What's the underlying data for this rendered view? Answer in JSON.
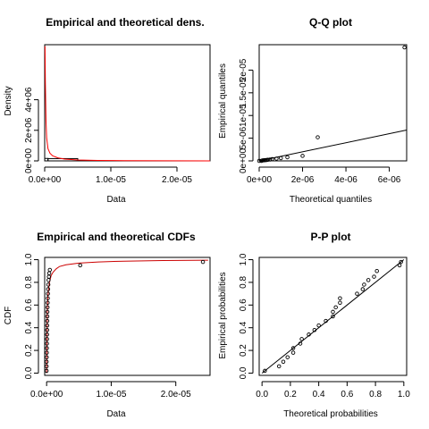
{
  "chart_data": [
    {
      "type": "histogram+density",
      "title": "Empirical and theoretical dens.",
      "xlabel": "Data",
      "ylabel": "Density",
      "xlim": [
        0,
        2.5e-05
      ],
      "ylim": [
        0,
        7600000
      ],
      "x_ticks": [
        {
          "v": 0,
          "label": "0.0e+00"
        },
        {
          "v": 1e-05,
          "label": "1.0e-05"
        },
        {
          "v": 2e-05,
          "label": "2.0e-05"
        }
      ],
      "y_ticks": [
        {
          "v": 0,
          "label": "0e+00"
        },
        {
          "v": 2000000,
          "label": "2e+06"
        },
        {
          "v": 4000000,
          "label": "4e+06"
        }
      ],
      "histogram": [
        {
          "x0": 0,
          "x1": 5e-07,
          "density": 160000
        },
        {
          "x0": 5e-07,
          "x1": 5e-06,
          "density": 150000
        }
      ],
      "density_curve": {
        "color": "#ff0000",
        "x": [
          5e-08,
          1e-07,
          2e-07,
          3e-07,
          5e-07,
          8e-07,
          1.2e-06,
          2e-06,
          3e-06,
          5e-06,
          8e-06,
          1.2e-05,
          1.8e-05,
          2.5e-05
        ],
        "y": [
          7500000,
          5200000,
          2600000,
          1500000,
          800000,
          500000,
          330000,
          200000,
          120000,
          60000,
          30000,
          15000,
          6000,
          2000
        ]
      }
    },
    {
      "type": "scatter",
      "title": "Q-Q plot",
      "xlabel": "Theoretical quantiles",
      "ylabel": "Empirical quantiles",
      "xlim": [
        0,
        6.8e-06
      ],
      "ylim": [
        0,
        2.56e-05
      ],
      "x_ticks": [
        {
          "v": 0,
          "label": "0e+00"
        },
        {
          "v": 2e-06,
          "label": "2e-06"
        },
        {
          "v": 4e-06,
          "label": "4e-06"
        },
        {
          "v": 6e-06,
          "label": "6e-06"
        }
      ],
      "y_ticks": [
        {
          "v": 0,
          "label": "0e+00"
        },
        {
          "v": 5e-06,
          "label": "5e-06"
        },
        {
          "v": 1e-05,
          "label": "1e-05"
        },
        {
          "v": 1.5e-05,
          "label": "1.5e-05"
        },
        {
          "v": 2e-05,
          "label": "2e-05"
        }
      ],
      "points": [
        {
          "x": 0.0,
          "y": 0.0
        },
        {
          "x": 1e-07,
          "y": 0.0
        },
        {
          "x": 1.5e-07,
          "y": 1e-07
        },
        {
          "x": 2e-07,
          "y": 1.2e-07
        },
        {
          "x": 2.5e-07,
          "y": 1.5e-07
        },
        {
          "x": 3e-07,
          "y": 1.8e-07
        },
        {
          "x": 3.5e-07,
          "y": 2e-07
        },
        {
          "x": 4e-07,
          "y": 2.5e-07
        },
        {
          "x": 5e-07,
          "y": 3e-07
        },
        {
          "x": 6e-07,
          "y": 4e-07
        },
        {
          "x": 8e-07,
          "y": 5e-07
        },
        {
          "x": 1e-06,
          "y": 6e-07
        },
        {
          "x": 1.3e-06,
          "y": 8e-07
        },
        {
          "x": 2e-06,
          "y": 1.1e-06
        },
        {
          "x": 2.7e-06,
          "y": 5.2e-06
        },
        {
          "x": 6.7e-06,
          "y": 2.5e-05
        }
      ],
      "line": {
        "x": [
          0,
          6.8e-06
        ],
        "y": [
          0,
          6.8e-06
        ]
      }
    },
    {
      "type": "ecdf",
      "title": "Empirical and theoretical CDFs",
      "xlabel": "Data",
      "ylabel": "CDF",
      "xlim": [
        -3e-07,
        2.53e-05
      ],
      "ylim": [
        -0.02,
        1.02
      ],
      "x_ticks": [
        {
          "v": 0,
          "label": "0.0e+00"
        },
        {
          "v": 1e-05,
          "label": "1.0e-05"
        },
        {
          "v": 2e-05,
          "label": "2.0e-05"
        }
      ],
      "y_ticks": [
        {
          "v": 0,
          "label": "0.0"
        },
        {
          "v": 0.2,
          "label": "0.2"
        },
        {
          "v": 0.4,
          "label": "0.4"
        },
        {
          "v": 0.6,
          "label": "0.6"
        },
        {
          "v": 0.8,
          "label": "0.8"
        },
        {
          "v": 1.0,
          "label": "1.0"
        }
      ],
      "points": [
        {
          "x": 0.0,
          "y": 0.02
        },
        {
          "x": 0.0,
          "y": 0.06
        },
        {
          "x": 0.0,
          "y": 0.1
        },
        {
          "x": 2e-08,
          "y": 0.14
        },
        {
          "x": 3e-08,
          "y": 0.18
        },
        {
          "x": 4e-08,
          "y": 0.22
        },
        {
          "x": 5e-08,
          "y": 0.26
        },
        {
          "x": 6e-08,
          "y": 0.3
        },
        {
          "x": 7e-08,
          "y": 0.34
        },
        {
          "x": 8e-08,
          "y": 0.38
        },
        {
          "x": 9e-08,
          "y": 0.42
        },
        {
          "x": 1e-07,
          "y": 0.46
        },
        {
          "x": 1.1e-07,
          "y": 0.5
        },
        {
          "x": 1.2e-07,
          "y": 0.54
        },
        {
          "x": 1.4e-07,
          "y": 0.58
        },
        {
          "x": 1.6e-07,
          "y": 0.62
        },
        {
          "x": 1.8e-07,
          "y": 0.66
        },
        {
          "x": 2e-07,
          "y": 0.7
        },
        {
          "x": 2.3e-07,
          "y": 0.74
        },
        {
          "x": 2.6e-07,
          "y": 0.78
        },
        {
          "x": 3e-07,
          "y": 0.82
        },
        {
          "x": 3.5e-07,
          "y": 0.85
        },
        {
          "x": 4e-07,
          "y": 0.88
        },
        {
          "x": 5e-07,
          "y": 0.91
        },
        {
          "x": 5.2e-06,
          "y": 0.95
        },
        {
          "x": 2.42e-05,
          "y": 0.98
        }
      ],
      "cdf_curve": {
        "color": "#cc0000",
        "x": [
          0,
          1e-07,
          2e-07,
          4e-07,
          7e-07,
          1e-06,
          1.5e-06,
          2e-06,
          3e-06,
          5e-06,
          8e-06,
          1.2e-05,
          1.8e-05,
          2.5e-05
        ],
        "y": [
          0.0,
          0.55,
          0.68,
          0.79,
          0.86,
          0.89,
          0.92,
          0.94,
          0.955,
          0.97,
          0.98,
          0.987,
          0.992,
          0.995
        ]
      }
    },
    {
      "type": "scatter",
      "title": "P-P plot",
      "xlabel": "Theoretical probabilities",
      "ylabel": "Empirical probabilities",
      "xlim": [
        -0.02,
        1.02
      ],
      "ylim": [
        -0.02,
        1.02
      ],
      "x_ticks": [
        {
          "v": 0,
          "label": "0.0"
        },
        {
          "v": 0.2,
          "label": "0.2"
        },
        {
          "v": 0.4,
          "label": "0.4"
        },
        {
          "v": 0.6,
          "label": "0.6"
        },
        {
          "v": 0.8,
          "label": "0.8"
        },
        {
          "v": 1.0,
          "label": "1.0"
        }
      ],
      "y_ticks": [
        {
          "v": 0,
          "label": "0.0"
        },
        {
          "v": 0.2,
          "label": "0.2"
        },
        {
          "v": 0.4,
          "label": "0.4"
        },
        {
          "v": 0.6,
          "label": "0.6"
        },
        {
          "v": 0.8,
          "label": "0.8"
        },
        {
          "v": 1.0,
          "label": "1.0"
        }
      ],
      "points": [
        {
          "x": 0.02,
          "y": 0.02
        },
        {
          "x": 0.12,
          "y": 0.06
        },
        {
          "x": 0.15,
          "y": 0.1
        },
        {
          "x": 0.18,
          "y": 0.14
        },
        {
          "x": 0.22,
          "y": 0.18
        },
        {
          "x": 0.22,
          "y": 0.22
        },
        {
          "x": 0.27,
          "y": 0.26
        },
        {
          "x": 0.28,
          "y": 0.3
        },
        {
          "x": 0.33,
          "y": 0.34
        },
        {
          "x": 0.37,
          "y": 0.38
        },
        {
          "x": 0.4,
          "y": 0.42
        },
        {
          "x": 0.45,
          "y": 0.46
        },
        {
          "x": 0.5,
          "y": 0.5
        },
        {
          "x": 0.5,
          "y": 0.54
        },
        {
          "x": 0.52,
          "y": 0.58
        },
        {
          "x": 0.55,
          "y": 0.62
        },
        {
          "x": 0.55,
          "y": 0.66
        },
        {
          "x": 0.67,
          "y": 0.7
        },
        {
          "x": 0.71,
          "y": 0.74
        },
        {
          "x": 0.72,
          "y": 0.78
        },
        {
          "x": 0.75,
          "y": 0.82
        },
        {
          "x": 0.79,
          "y": 0.85
        },
        {
          "x": 0.81,
          "y": 0.9
        },
        {
          "x": 0.97,
          "y": 0.95
        },
        {
          "x": 0.98,
          "y": 0.98
        }
      ],
      "line": {
        "x": [
          0,
          1
        ],
        "y": [
          0,
          1
        ]
      }
    }
  ]
}
